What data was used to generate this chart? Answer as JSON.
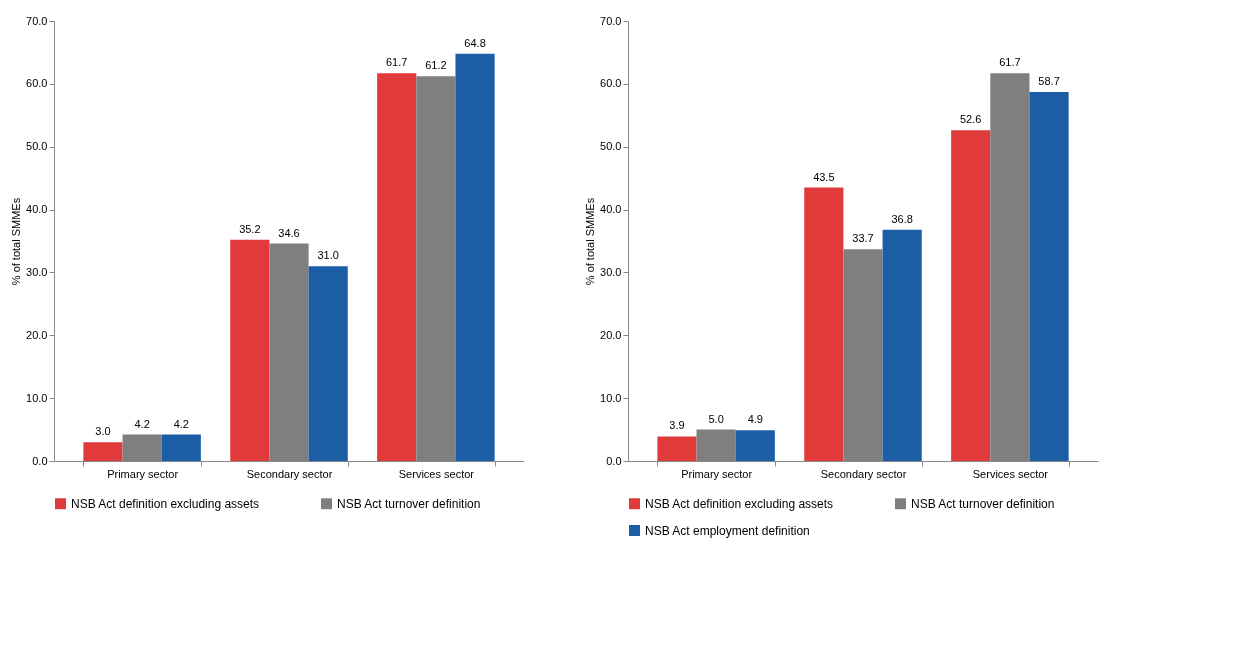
{
  "chart_data": [
    {
      "type": "bar",
      "ylabel": "% of total SMMEs",
      "categories": [
        "Primary sector",
        "Secondary sector",
        "Services sector"
      ],
      "series": [
        {
          "name": "NSB Act definition excluding assets",
          "color": "#e03a3a",
          "values": [
            3.0,
            35.2,
            61.7
          ],
          "value_labels": [
            "3.0",
            "35.2",
            "61.7"
          ]
        },
        {
          "name": "NSB Act turnover definition",
          "color": "#7f7f7f",
          "values": [
            4.2,
            34.6,
            61.2
          ],
          "value_labels": [
            "4.2",
            "34.6",
            "61.2"
          ]
        },
        {
          "color": "#1b5ea6",
          "values": [
            4.2,
            31.0,
            64.8
          ],
          "value_labels": [
            "4.2",
            "31.0",
            "64.8"
          ]
        }
      ],
      "ylim": [
        0,
        70
      ],
      "yticks": [
        {
          "value": 0,
          "label": "0.0"
        },
        {
          "value": 10,
          "label": "10.0"
        },
        {
          "value": 20,
          "label": "20.0"
        },
        {
          "value": 30,
          "label": "30.0"
        },
        {
          "value": 40,
          "label": "40.0"
        },
        {
          "value": 50,
          "label": "50.0"
        },
        {
          "value": 60,
          "label": "60.0"
        },
        {
          "value": 70,
          "label": "70.0"
        }
      ],
      "legend": "bottom"
    },
    {
      "type": "bar",
      "ylabel": "% of total SMMEs",
      "categories": [
        "Primary sector",
        "Secondary sector",
        "Services sector"
      ],
      "series": [
        {
          "name": "NSB Act definition excluding assets",
          "color": "#e03a3a",
          "values": [
            3.9,
            43.5,
            52.6
          ],
          "value_labels": [
            "3.9",
            "43.5",
            "52.6"
          ]
        },
        {
          "name": "NSB Act turnover definition",
          "color": "#7f7f7f",
          "values": [
            5.0,
            33.7,
            61.7
          ],
          "value_labels": [
            "5.0",
            "33.7",
            "61.7"
          ]
        },
        {
          "name": "NSB Act employment definition",
          "color": "#1b5ea6",
          "values": [
            4.9,
            36.8,
            58.7
          ],
          "value_labels": [
            "4.9",
            "36.8",
            "58.7"
          ]
        }
      ],
      "ylim": [
        0,
        70
      ],
      "yticks": [
        {
          "value": 0,
          "label": "0.0"
        },
        {
          "value": 10,
          "label": "10.0"
        },
        {
          "value": 20,
          "label": "20.0"
        },
        {
          "value": 30,
          "label": "30.0"
        },
        {
          "value": 40,
          "label": "40.0"
        },
        {
          "value": 50,
          "label": "50.0"
        },
        {
          "value": 60,
          "label": "60.0"
        },
        {
          "value": 70,
          "label": "70.0"
        }
      ],
      "legend": "bottom"
    }
  ]
}
